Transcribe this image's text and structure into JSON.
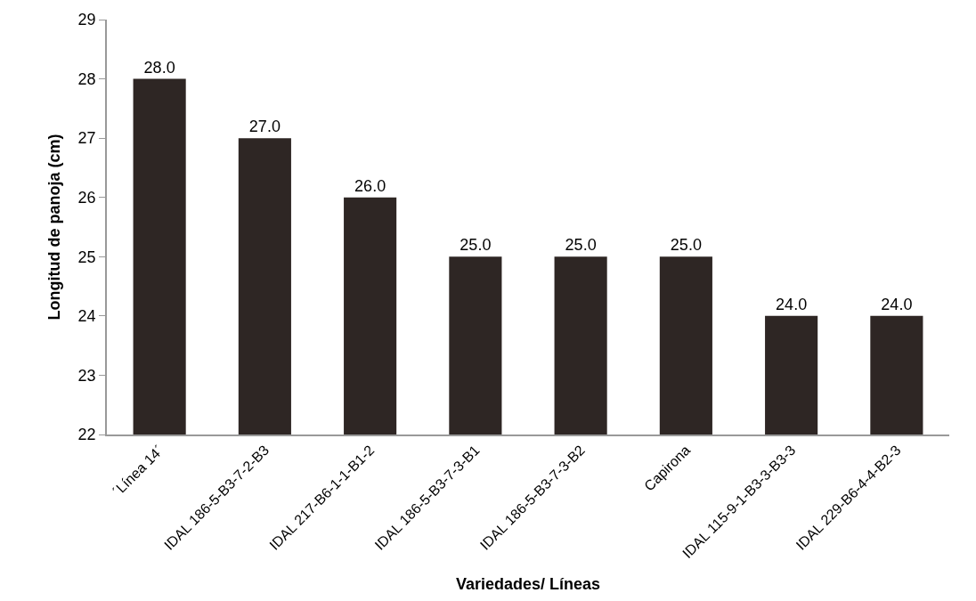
{
  "chart_data": {
    "type": "bar",
    "xlabel": "Variedades/ Líneas",
    "ylabel": "Longitud de panoja (cm)",
    "categories": [
      "´Línea 14´",
      "IDAL 186-5-B3-7-2-B3",
      "IDAL 217-B6-1-1-B1-2",
      "IDAL 186-5-B3-7-3-B1",
      "IDAL 186-5-B3-7-3-B2",
      "Capirona",
      "IDAL 115-9-1-B3-3-B3-3",
      "IDAL 229-B6-4-4-B2-3"
    ],
    "values": [
      28,
      27,
      26,
      25,
      25,
      25,
      24,
      24
    ],
    "value_labels": [
      "28.0",
      "27.0",
      "26.0",
      "25.0",
      "25.0",
      "25.0",
      "24.0",
      "24.0"
    ],
    "color": "#2e2624",
    "ylim": [
      22,
      29
    ],
    "yticks": [
      22,
      23,
      24,
      25,
      26,
      27,
      28,
      29
    ],
    "grid": false
  }
}
